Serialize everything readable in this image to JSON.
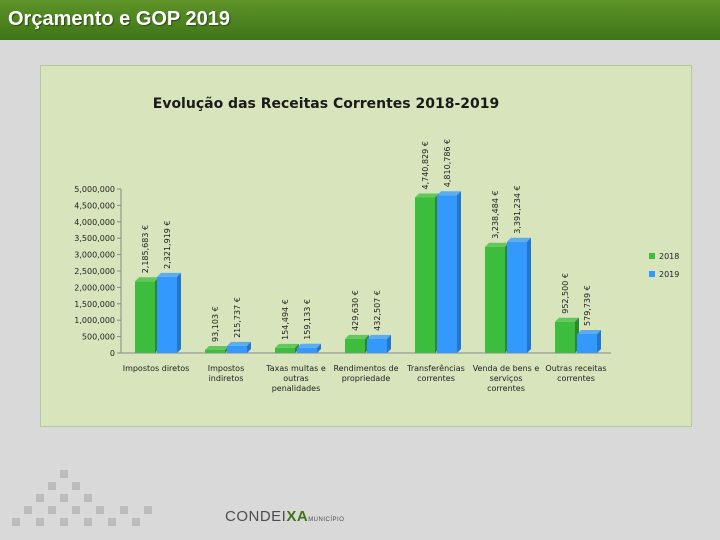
{
  "header": {
    "title": "Orçamento e GOP 2019"
  },
  "footer": {
    "brand_a": "CONDEI",
    "brand_b": "XA",
    "brand_c": "MUNICÍPIO"
  },
  "colors": {
    "header": "#4a8520",
    "panel": "#d8e4bc",
    "series_2018": "#3dbd3d",
    "series_2019": "#3399ff"
  },
  "chart_data": {
    "type": "bar",
    "title": "Evolução das Receitas Correntes 2018-2019",
    "categories": [
      "Impostos diretos",
      "Impostos indiretos",
      "Taxas multas e outras penalidades",
      "Rendimentos de propriedade",
      "Transferências correntes",
      "Venda de bens e serviços correntes",
      "Outras receitas correntes"
    ],
    "category_lines": [
      [
        "Impostos diretos"
      ],
      [
        "Impostos",
        "indiretos"
      ],
      [
        "Taxas multas e",
        "outras",
        "penalidades"
      ],
      [
        "Rendimentos de",
        "propriedade"
      ],
      [
        "Transferências",
        "correntes"
      ],
      [
        "Venda de bens e",
        "serviços",
        "correntes"
      ],
      [
        "Outras receitas",
        "correntes"
      ]
    ],
    "series": [
      {
        "name": "2018",
        "values": [
          2185683,
          93103,
          154494,
          429630,
          4740829,
          3238484,
          952500
        ],
        "labels": [
          "2,185,683 €",
          "93,103 €",
          "154,494 €",
          "429,630 €",
          "4,740,829 €",
          "3,238,484 €",
          "952,500 €"
        ]
      },
      {
        "name": "2019",
        "values": [
          2321919,
          215737,
          159133,
          432507,
          4810786,
          3391234,
          579739
        ],
        "labels": [
          "2,321,919 €",
          "215,737 €",
          "159,133 €",
          "432,507 €",
          "4,810,786 €",
          "3,391,234 €",
          "579,739 €"
        ]
      }
    ],
    "ylim": [
      0,
      5000000
    ],
    "yticks": [
      0,
      500000,
      1000000,
      1500000,
      2000000,
      2500000,
      3000000,
      3500000,
      4000000,
      4500000,
      5000000
    ],
    "ytick_labels": [
      "0",
      "500,000",
      "1,000,000",
      "1,500,000",
      "2,000,000",
      "2,500,000",
      "3,000,000",
      "3,500,000",
      "4,000,000",
      "4,500,000",
      "5,000,000"
    ],
    "legend": [
      "2018",
      "2019"
    ],
    "legend_position": "right"
  }
}
